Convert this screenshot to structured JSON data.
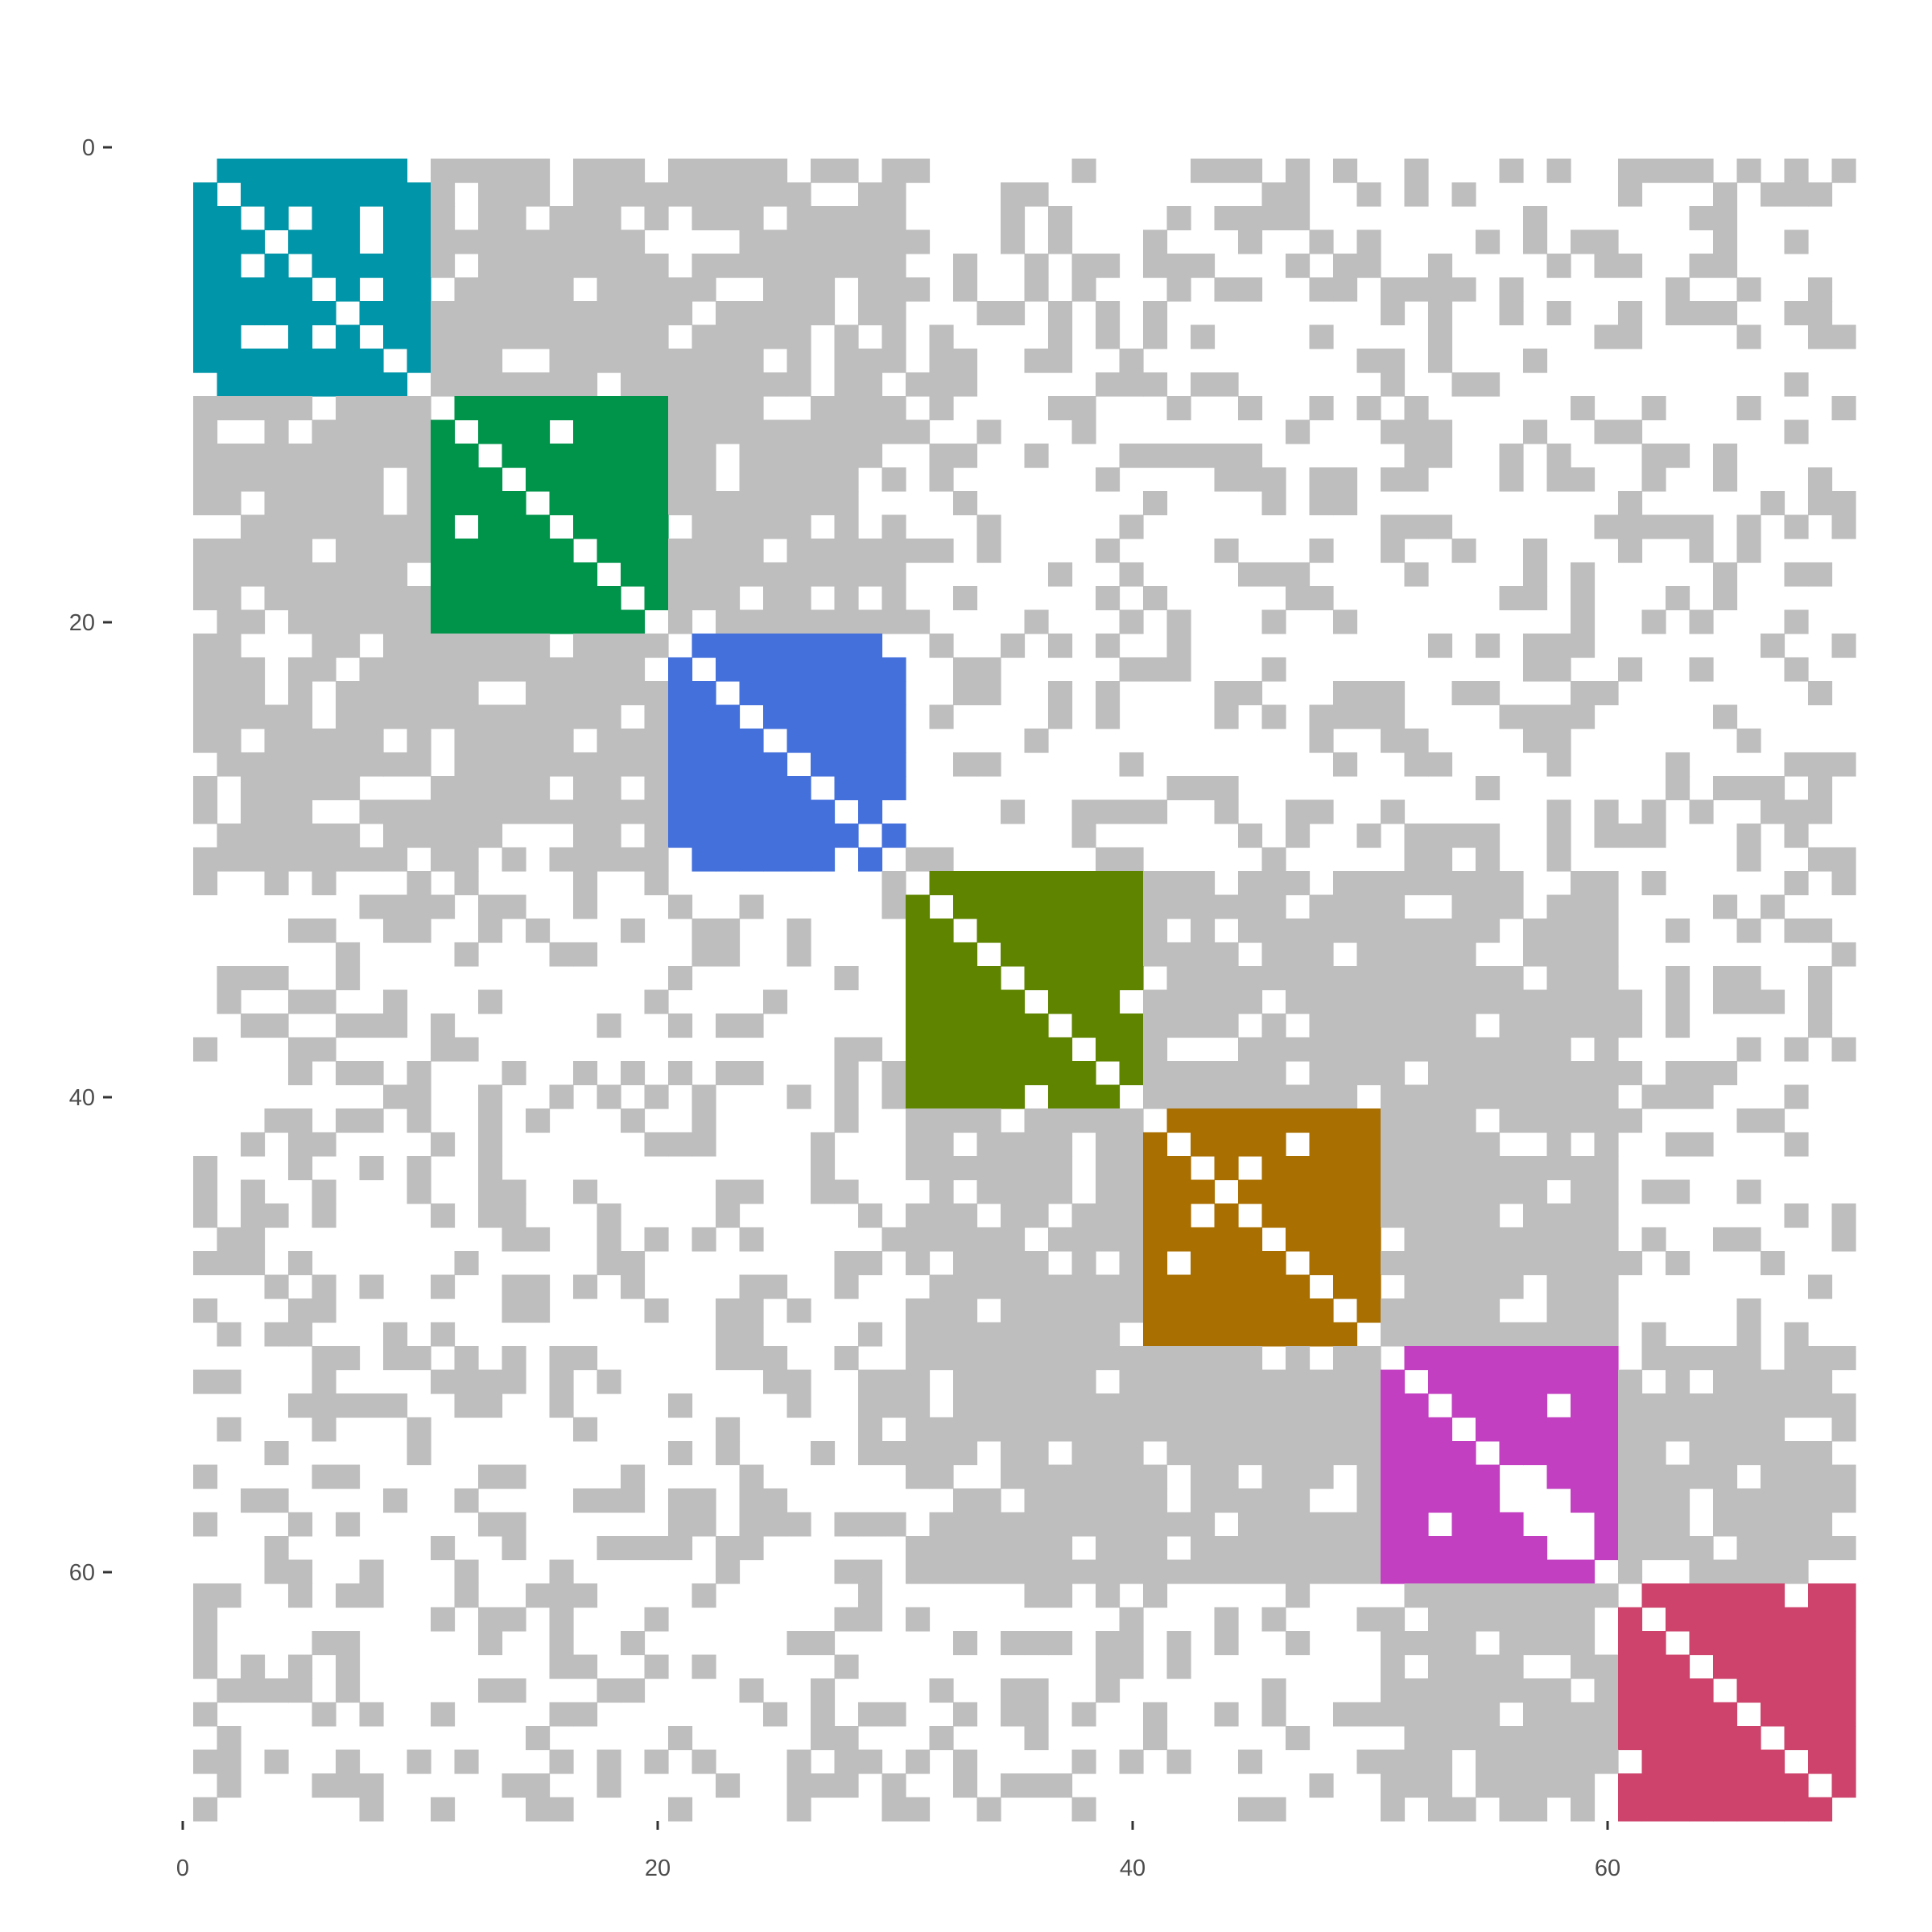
{
  "chart_data": {
    "type": "heatmap",
    "title": "",
    "xlabel": "",
    "ylabel": "",
    "xlim": [
      0,
      70
    ],
    "ylim": [
      0,
      70
    ],
    "y_axis_reversed": true,
    "grid": false,
    "legend": "none",
    "x_ticks": [
      {
        "value": 0,
        "label": "0"
      },
      {
        "value": 20,
        "label": "20"
      },
      {
        "value": 40,
        "label": "40"
      },
      {
        "value": 60,
        "label": "60"
      }
    ],
    "y_ticks": [
      {
        "value": 0,
        "label": "0"
      },
      {
        "value": 20,
        "label": "20"
      },
      {
        "value": 40,
        "label": "40"
      },
      {
        "value": 60,
        "label": "60"
      }
    ],
    "background_connection_color": "#bebebe",
    "approximate_background_density": 0.42,
    "blocks": [
      {
        "name": "block-1",
        "start": 0,
        "end": 9,
        "color": "#0095a8"
      },
      {
        "name": "block-2",
        "start": 10,
        "end": 19,
        "color": "#00934a"
      },
      {
        "name": "block-3",
        "start": 20,
        "end": 29,
        "color": "#4470dc"
      },
      {
        "name": "block-4",
        "start": 30,
        "end": 39,
        "color": "#5f8500"
      },
      {
        "name": "block-5",
        "start": 40,
        "end": 49,
        "color": "#a96f00"
      },
      {
        "name": "block-6",
        "start": 50,
        "end": 59,
        "color": "#c23fc1"
      },
      {
        "name": "block-7",
        "start": 60,
        "end": 69,
        "color": "#cd436b"
      }
    ],
    "dense_offdiagonal_pairs": [
      [
        1,
        2
      ],
      [
        1,
        3
      ],
      [
        2,
        3
      ],
      [
        4,
        5
      ],
      [
        4,
        6
      ],
      [
        5,
        6
      ],
      [
        6,
        7
      ]
    ],
    "diagonal_empty": true
  }
}
